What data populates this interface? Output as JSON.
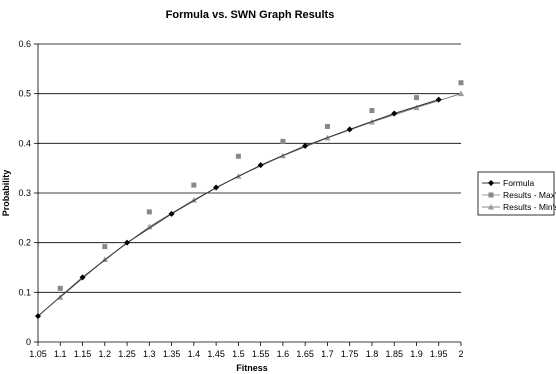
{
  "chart_data": {
    "type": "scatter",
    "title": "Formula vs. SWN Graph Results",
    "xlabel": "Fitness",
    "ylabel": "Probability",
    "xlim": [
      1.05,
      2
    ],
    "ylim": [
      0,
      0.6
    ],
    "x_ticks": [
      "1.05",
      "1.1",
      "1.15",
      "1.2",
      "1.25",
      "1.3",
      "1.35",
      "1.4",
      "1.45",
      "1.5",
      "1.55",
      "1.6",
      "1.65",
      "1.7",
      "1.75",
      "1.8",
      "1.85",
      "1.9",
      "1.95",
      "2"
    ],
    "y_ticks": [
      "0",
      "0.1",
      "0.2",
      "0.3",
      "0.4",
      "0.5",
      "0.6"
    ],
    "grid": "horizontal",
    "legend_position": "right",
    "series": [
      {
        "name": "Formula",
        "color": "#000000",
        "marker": "diamond",
        "line": true,
        "x": [
          1.05,
          1.15,
          1.25,
          1.35,
          1.45,
          1.55,
          1.65,
          1.75,
          1.85,
          1.95
        ],
        "y": [
          0.052,
          0.13,
          0.2,
          0.258,
          0.311,
          0.356,
          0.395,
          0.428,
          0.46,
          0.488
        ]
      },
      {
        "name": "Results - Max's",
        "color": "#888888",
        "marker": "square",
        "line": false,
        "x": [
          1.1,
          1.2,
          1.3,
          1.4,
          1.5,
          1.6,
          1.7,
          1.8,
          1.9,
          2.0
        ],
        "y": [
          0.108,
          0.192,
          0.262,
          0.316,
          0.374,
          0.404,
          0.434,
          0.466,
          0.492,
          0.522
        ]
      },
      {
        "name": "Results - Min's",
        "color": "#999999",
        "marker": "triangle",
        "line": true,
        "x": [
          1.1,
          1.2,
          1.3,
          1.4,
          1.5,
          1.6,
          1.7,
          1.8,
          1.9,
          2.0
        ],
        "y": [
          0.09,
          0.166,
          0.232,
          0.286,
          0.334,
          0.375,
          0.411,
          0.443,
          0.472,
          0.5
        ]
      }
    ]
  }
}
